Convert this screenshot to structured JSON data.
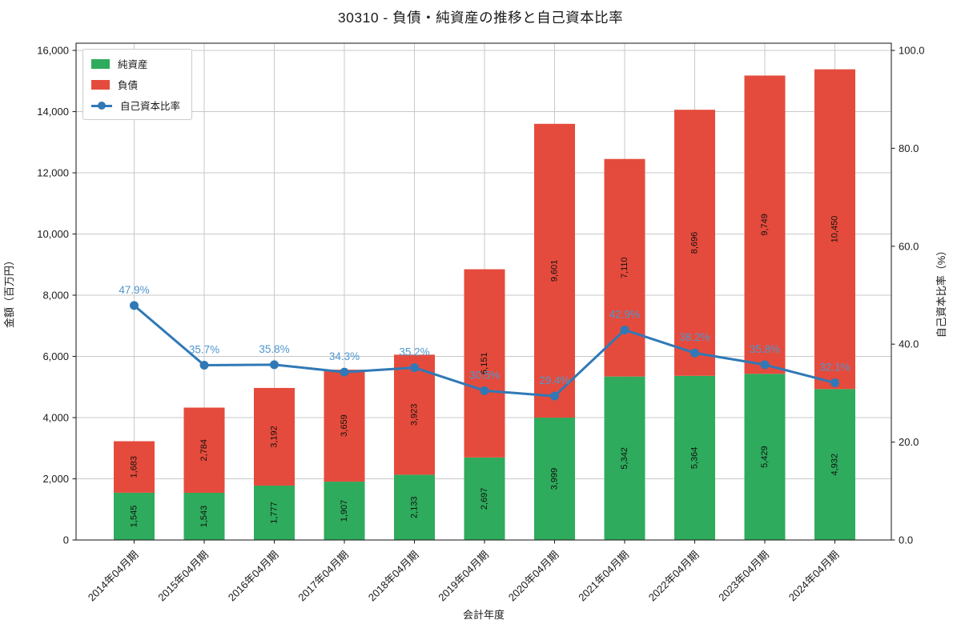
{
  "chart_data": {
    "type": "bar",
    "subtype": "stacked-bars-with-line-overlay",
    "title": "30310 - 負債・純資産の推移と自己資本比率",
    "xlabel": "会計年度",
    "ylabel_left": "金額（百万円）",
    "ylabel_right": "自己資本比率（%）",
    "categories": [
      "2014年04月期",
      "2015年04月期",
      "2016年04月期",
      "2017年04月期",
      "2018年04月期",
      "2019年04月期",
      "2020年04月期",
      "2021年04月期",
      "2022年04月期",
      "2023年04月期",
      "2024年04月期"
    ],
    "series": [
      {
        "key": "net-assets",
        "name": "純資産",
        "type": "bar",
        "color": "#2eab5c",
        "values": [
          1545,
          1543,
          1777,
          1907,
          2133,
          2697,
          3999,
          5342,
          5364,
          5429,
          4932
        ]
      },
      {
        "key": "liabilities",
        "name": "負債",
        "type": "bar",
        "color": "#e54b3c",
        "values": [
          1683,
          2784,
          3192,
          3659,
          3923,
          6151,
          9601,
          7110,
          8696,
          9749,
          10450
        ]
      },
      {
        "key": "equity-ratio",
        "name": "自己資本比率",
        "type": "line",
        "axis": "right",
        "color": "#3079b6",
        "label_color": "#4f96ce",
        "values": [
          47.9,
          35.7,
          35.8,
          34.3,
          35.2,
          30.5,
          29.4,
          42.9,
          38.2,
          35.8,
          32.1
        ],
        "labels": [
          "47.9%",
          "35.7%",
          "35.8%",
          "34.3%",
          "35.2%",
          "30.5%",
          "29.4%",
          "42.9%",
          "38.2%",
          "35.8%",
          "32.1%"
        ]
      }
    ],
    "stacked": true,
    "grid": true,
    "legend_position": "upper left",
    "ylim_left": [
      0,
      16000
    ],
    "yticks_left": [
      "0",
      "2,000",
      "4,000",
      "6,000",
      "8,000",
      "10,000",
      "12,000",
      "14,000",
      "16,000"
    ],
    "ylim_right": [
      0,
      100
    ],
    "yticks_right": [
      "0.0",
      "20.0",
      "40.0",
      "60.0",
      "80.0",
      "100.0"
    ],
    "colors": {
      "grid": "#c9c9c9",
      "spine": "#262626",
      "text": "#1a1a1a"
    }
  }
}
